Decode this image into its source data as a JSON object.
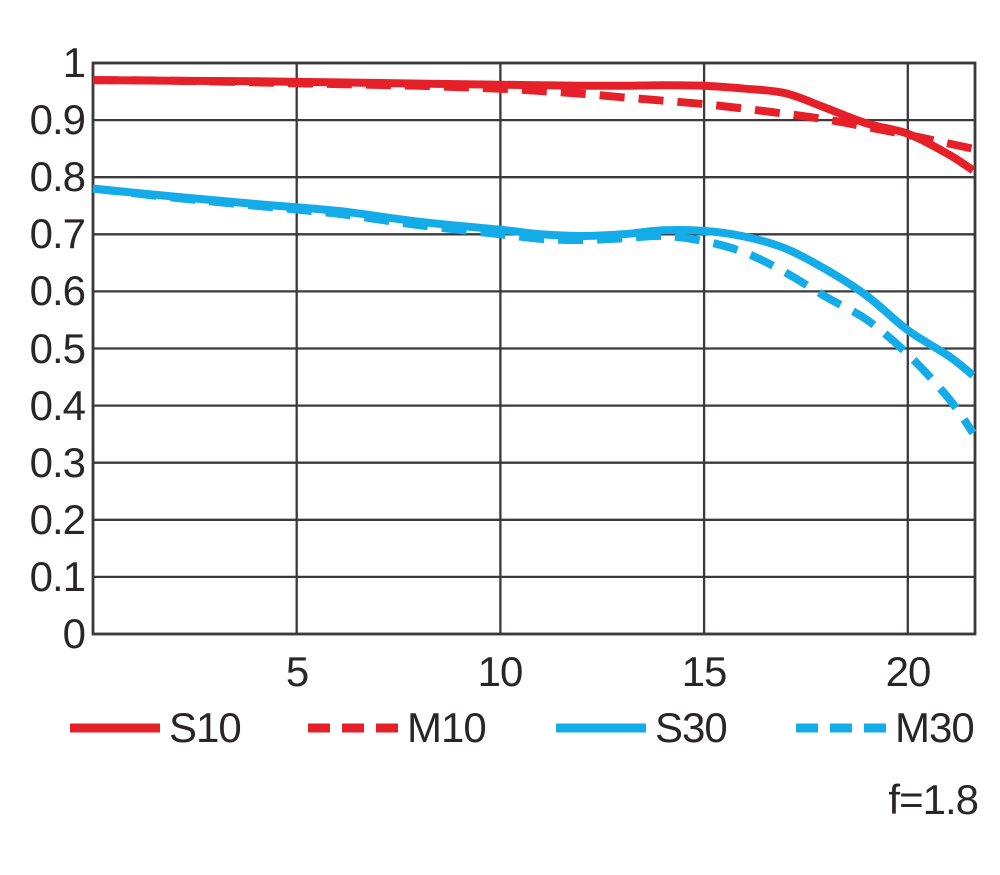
{
  "chart_data": {
    "type": "line",
    "title": "",
    "xlabel": "",
    "ylabel": "",
    "xlim": [
      0,
      21.65
    ],
    "ylim": [
      0,
      1
    ],
    "grid": true,
    "legend_position": "bottom",
    "x_tick_values": [
      5,
      10,
      15,
      20
    ],
    "x_tick_labels": [
      "5",
      "10",
      "15",
      "20"
    ],
    "y_tick_values": [
      0,
      0.1,
      0.2,
      0.3,
      0.4,
      0.5,
      0.6,
      0.7,
      0.8,
      0.9,
      1
    ],
    "y_tick_labels": [
      "0",
      "0.1",
      "0.2",
      "0.3",
      "0.4",
      "0.5",
      "0.6",
      "0.7",
      "0.8",
      "0.9",
      "1"
    ],
    "x": [
      0,
      2,
      4,
      6,
      8,
      10,
      11,
      12,
      13,
      14,
      15,
      16,
      17,
      18,
      19,
      20,
      21,
      21.6
    ],
    "series": [
      {
        "name": "S10",
        "color": "#e62029",
        "style": "solid",
        "values": [
          0.97,
          0.969,
          0.968,
          0.966,
          0.964,
          0.962,
          0.961,
          0.96,
          0.96,
          0.961,
          0.96,
          0.955,
          0.947,
          0.921,
          0.894,
          0.876,
          0.84,
          0.812
        ]
      },
      {
        "name": "M10",
        "color": "#e62029",
        "style": "dashed",
        "values": [
          0.97,
          0.969,
          0.966,
          0.963,
          0.96,
          0.955,
          0.951,
          0.946,
          0.94,
          0.934,
          0.928,
          0.92,
          0.911,
          0.901,
          0.888,
          0.874,
          0.859,
          0.85
        ]
      },
      {
        "name": "S30",
        "color": "#14ace8",
        "style": "solid",
        "values": [
          0.78,
          0.766,
          0.753,
          0.741,
          0.722,
          0.708,
          0.7,
          0.697,
          0.7,
          0.707,
          0.706,
          0.696,
          0.675,
          0.638,
          0.592,
          0.532,
          0.487,
          0.453
        ]
      },
      {
        "name": "M30",
        "color": "#14ace8",
        "style": "dashed",
        "values": [
          0.78,
          0.764,
          0.75,
          0.736,
          0.716,
          0.7,
          0.692,
          0.69,
          0.693,
          0.697,
          0.688,
          0.668,
          0.633,
          0.59,
          0.55,
          0.49,
          0.413,
          0.352
        ]
      }
    ]
  },
  "footer": {
    "aperture_label": "f=1.8"
  },
  "colors": {
    "background": "#ffffff",
    "grid": "#3c393a",
    "text": "#2a2627",
    "red": "#e62029",
    "blue": "#14ace8"
  }
}
